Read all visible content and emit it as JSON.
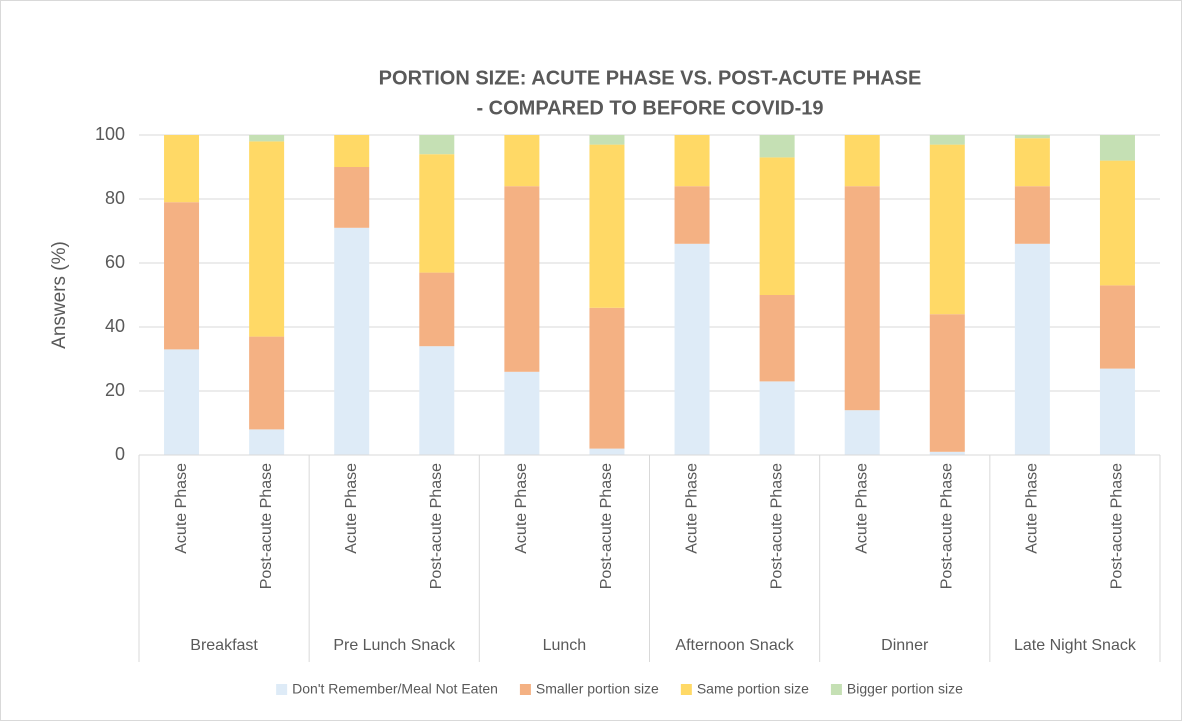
{
  "chart_data": {
    "type": "stacked_bar",
    "title": [
      "PORTION SIZE: ACUTE PHASE VS. POST-ACUTE PHASE",
      "- COMPARED TO BEFORE COVID-19"
    ],
    "y_label": "Answers (%)",
    "categories": [
      "Acute Phase",
      "Post-acute Phase",
      "Acute Phase",
      "Post-acute Phase",
      "Acute Phase",
      "Post-acute Phase",
      "Acute Phase",
      "Post-acute Phase",
      "Acute Phase",
      "Post-acute Phase",
      "Acute Phase",
      "Post-acute Phase"
    ],
    "groups": [
      "Breakfast",
      "Pre Lunch Snack",
      "Lunch",
      "Afternoon Snack",
      "Dinner",
      "Late Night Snack"
    ],
    "series": [
      {
        "name": "Don't Remember/Meal Not Eaten",
        "color": "#deebf7",
        "values": [
          33,
          8,
          71,
          34,
          26,
          2,
          66,
          23,
          14,
          1,
          66,
          27
        ]
      },
      {
        "name": "Smaller portion size",
        "color": "#f4b183",
        "values": [
          46,
          29,
          19,
          23,
          58,
          44,
          18,
          27,
          70,
          43,
          18,
          26
        ]
      },
      {
        "name": "Same portion size",
        "color": "#ffd966",
        "values": [
          21,
          61,
          10,
          37,
          16,
          51,
          16,
          43,
          16,
          53,
          15,
          39
        ]
      },
      {
        "name": "Bigger portion size",
        "color": "#c5e0b4",
        "values": [
          0,
          2,
          0,
          6,
          0,
          3,
          0,
          7,
          0,
          3,
          1,
          8
        ]
      }
    ],
    "ylim": [
      0,
      100
    ],
    "yticks": [
      0,
      20,
      40,
      60,
      80,
      100
    ],
    "grid": true,
    "legend": "bottom"
  }
}
